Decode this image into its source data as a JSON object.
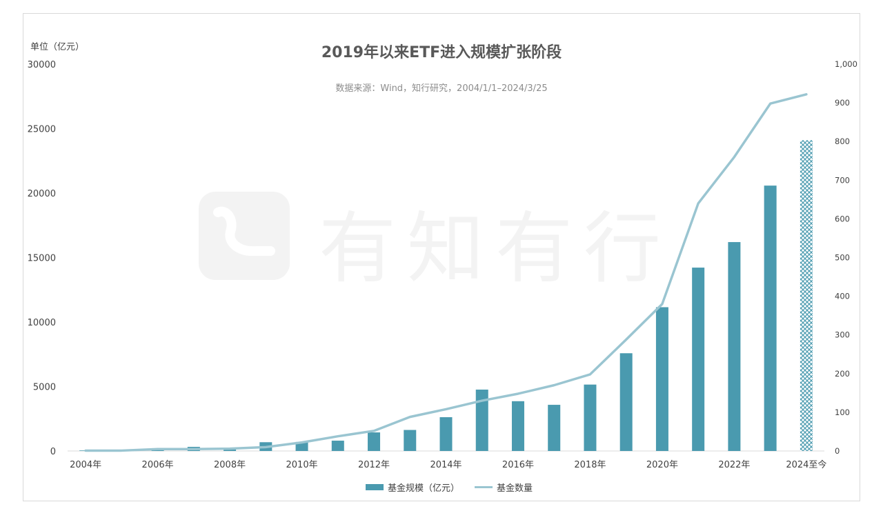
{
  "chart_data": {
    "type": "bar+line",
    "title": "2019年以来ETF进入规模扩张阶段",
    "subtitle": "数据来源：Wind，知行研究，2004/1/1–2024/3/25",
    "left_axis_unit": "单位（亿元）",
    "categories": [
      "2004年",
      "2005年",
      "2006年",
      "2007年",
      "2008年",
      "2009年",
      "2010年",
      "2011年",
      "2012年",
      "2013年",
      "2014年",
      "2015年",
      "2016年",
      "2017年",
      "2018年",
      "2019年",
      "2020年",
      "2021年",
      "2022年",
      "2023年",
      "2024至今"
    ],
    "x_tick_labels": [
      "2004年",
      "2006年",
      "2008年",
      "2010年",
      "2012年",
      "2014年",
      "2016年",
      "2018年",
      "2020年",
      "2022年",
      "2024至今"
    ],
    "series": [
      {
        "name": "基金规模（亿元）",
        "type": "bar",
        "axis": "left",
        "color": "#4a9aaf",
        "values": [
          40,
          60,
          130,
          320,
          170,
          680,
          700,
          800,
          1440,
          1630,
          2620,
          4760,
          3860,
          3580,
          5150,
          7580,
          11150,
          14220,
          16200,
          20580,
          24100
        ]
      },
      {
        "name": "基金数量",
        "type": "line",
        "axis": "right",
        "color": "#9ac5d1",
        "values": [
          1,
          1,
          5,
          5,
          6,
          10,
          22,
          38,
          52,
          88,
          108,
          130,
          148,
          170,
          198,
          288,
          380,
          640,
          760,
          898,
          922
        ]
      }
    ],
    "left_axis": {
      "min": 0,
      "max": 30000,
      "ticks": [
        "0",
        "5000",
        "10000",
        "15000",
        "20000",
        "25000",
        "30000"
      ]
    },
    "right_axis": {
      "min": 0,
      "max": 1000,
      "ticks": [
        "0",
        "100",
        "200",
        "300",
        "400",
        "500",
        "600",
        "700",
        "800",
        "900",
        "1,000"
      ]
    },
    "last_bar_pattern": "crosshatch",
    "legend_position": "bottom",
    "watermark": "有知有行"
  }
}
